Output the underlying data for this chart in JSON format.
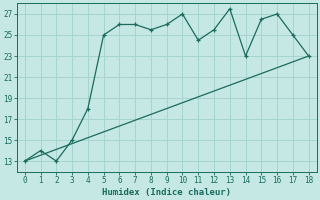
{
  "xlabel": "Humidex (Indice chaleur)",
  "ylabel": "",
  "background_color": "#c5e8e4",
  "grid_color": "#a8d4d0",
  "line_color": "#1a6b5e",
  "xlim": [
    -0.5,
    18.5
  ],
  "ylim": [
    12,
    28
  ],
  "xticks": [
    0,
    1,
    2,
    3,
    4,
    5,
    6,
    7,
    8,
    9,
    10,
    11,
    12,
    13,
    14,
    15,
    16,
    17,
    18
  ],
  "yticks": [
    13,
    15,
    17,
    19,
    21,
    23,
    25,
    27
  ],
  "curve_x": [
    0,
    1,
    2,
    3,
    4,
    5,
    6,
    7,
    8,
    9,
    10,
    11,
    12,
    13,
    14,
    15,
    16,
    17,
    18
  ],
  "curve_y": [
    13,
    14,
    13,
    15,
    18,
    25,
    26,
    26,
    25.5,
    26,
    27,
    24.5,
    25.5,
    27.5,
    23,
    26.5,
    27,
    25,
    23
  ],
  "line_x": [
    0,
    18
  ],
  "line_y": [
    13,
    23
  ]
}
